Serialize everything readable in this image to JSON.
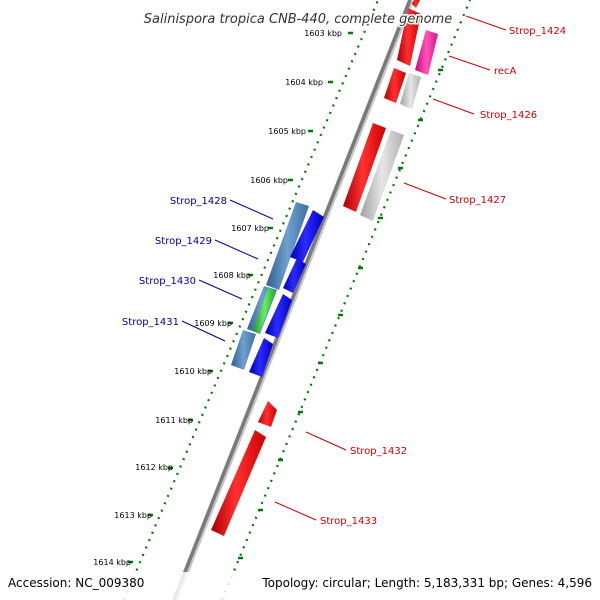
{
  "title": "Salinispora tropica CNB-440, complete genome",
  "footer": {
    "accession": "Accession: NC_009380",
    "topology": "Topology: circular; Length: 5,183,331 bp; Genes: 4,596"
  },
  "colors": {
    "backbone": "#808080",
    "ruler_ticks": "#007a00",
    "forward_gene": "#ff0000",
    "reverse_gene": "#0000ff",
    "rrna_like": "#c8c8c8",
    "highlight": "#ff2aa0",
    "steelblue": "#4682b4",
    "green": "#33cc33",
    "label_right": "#cc0000",
    "label_left": "#000099"
  },
  "ruler_labels": [
    "1603 kbp",
    "1604 kbp",
    "1605 kbp",
    "1606 kbp",
    "1607 kbp",
    "1608 kbp",
    "1609 kbp",
    "1610 kbp",
    "1611 kbp",
    "1612 kbp",
    "1613 kbp",
    "1614 kbp"
  ],
  "gene_labels_right": [
    "Strop_1424",
    "recA",
    "Strop_1426",
    "Strop_1427",
    "Strop_1432",
    "Strop_1433"
  ],
  "gene_labels_left": [
    "Strop_1428",
    "Strop_1429",
    "Strop_1430",
    "Strop_1431"
  ]
}
